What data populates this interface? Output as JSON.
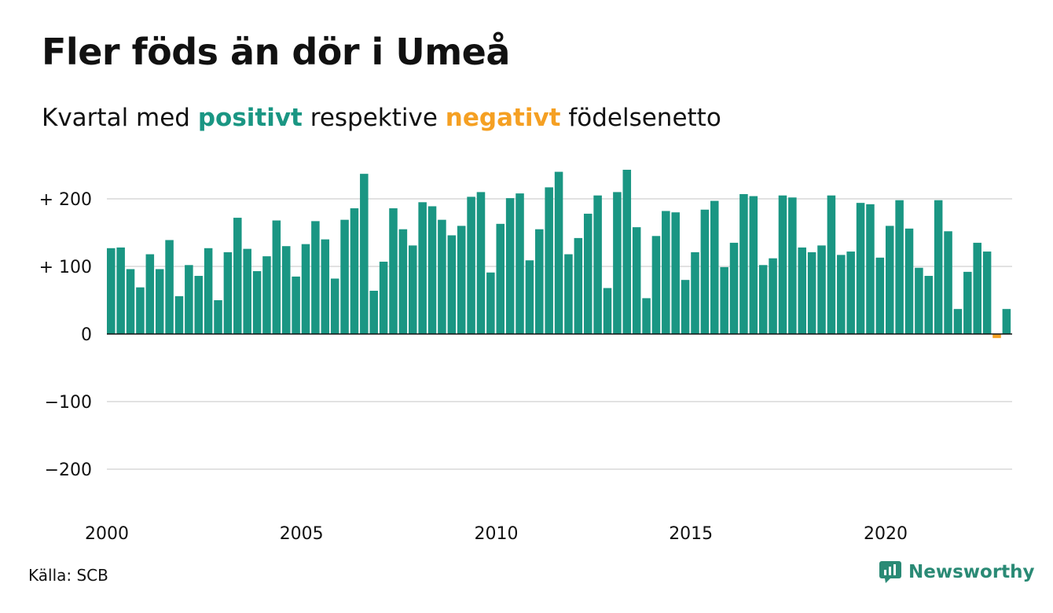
{
  "title": "Fler föds än dör i Umeå",
  "subtitle": {
    "prefix": "Kvartal med",
    "positive": "positivt",
    "middle": "respektive",
    "negative": "negativt",
    "suffix": "födelsenetto"
  },
  "source": "Källa: SCB",
  "brand": "Newsworthy",
  "colors": {
    "positive": "#1a9683",
    "negative": "#f5a023",
    "grid": "#e2e2e2",
    "text": "#111111",
    "brand": "#2a8a75"
  },
  "chart_data": {
    "type": "bar",
    "x_tick_labels": [
      "2000",
      "2005",
      "2010",
      "2015",
      "2020"
    ],
    "y_tick_labels": [
      "+ 200",
      "+ 100",
      "0",
      "−100",
      "−200"
    ],
    "y_ticks": [
      200,
      100,
      0,
      -100,
      -200
    ],
    "ylim": [
      -245,
      250
    ],
    "grid": true,
    "first_period": "2000 Q1",
    "values": [
      127,
      128,
      96,
      69,
      118,
      96,
      139,
      56,
      102,
      86,
      127,
      50,
      121,
      172,
      126,
      93,
      115,
      168,
      130,
      85,
      133,
      167,
      140,
      82,
      169,
      186,
      237,
      64,
      107,
      186,
      155,
      131,
      195,
      189,
      169,
      146,
      160,
      203,
      210,
      91,
      163,
      201,
      208,
      109,
      155,
      217,
      240,
      118,
      142,
      178,
      205,
      68,
      210,
      243,
      158,
      53,
      145,
      182,
      180,
      80,
      121,
      184,
      197,
      99,
      135,
      207,
      204,
      102,
      112,
      205,
      202,
      128,
      121,
      131,
      205,
      117,
      122,
      194,
      192,
      113,
      160,
      198,
      156,
      98,
      86,
      198,
      152,
      37,
      92,
      135,
      122,
      -6,
      37
    ]
  }
}
